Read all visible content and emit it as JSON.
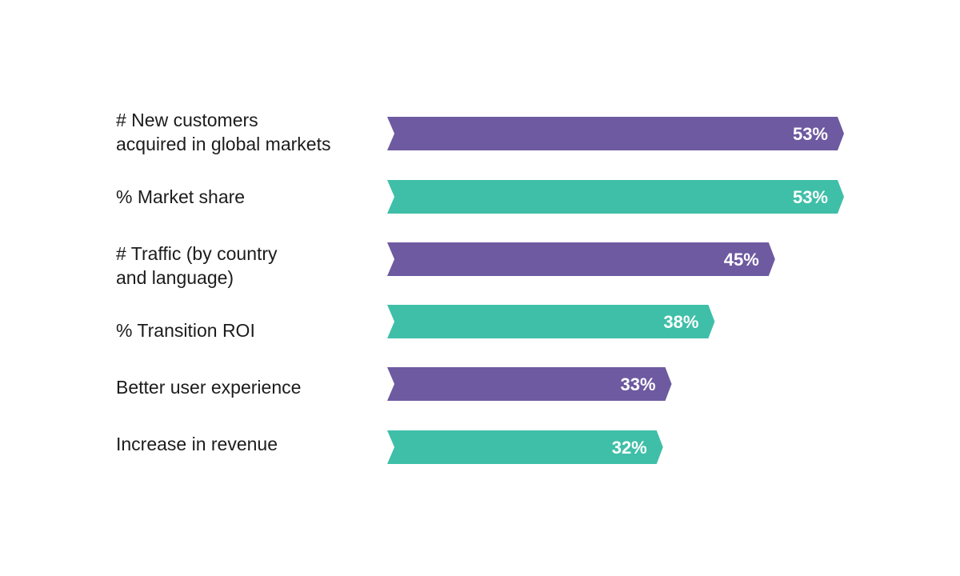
{
  "chart_data": {
    "type": "bar",
    "orientation": "horizontal",
    "categories": [
      "# New customers\nacquired in global markets",
      "% Market share",
      "# Traffic (by country\nand language)",
      "% Transition ROI",
      "Better user experience",
      "Increase in revenue"
    ],
    "values": [
      53,
      53,
      45,
      38,
      33,
      32
    ],
    "value_labels": [
      "53%",
      "53%",
      "45%",
      "38%",
      "33%",
      "32%"
    ],
    "unit": "%",
    "xlim": [
      0,
      53
    ],
    "grid": false,
    "legend": "none",
    "colors": {
      "purple": "#6E5AA0",
      "teal": "#3FBFA8"
    },
    "bar_colors": [
      "#6E5AA0",
      "#3FBFA8",
      "#6E5AA0",
      "#3FBFA8",
      "#6E5AA0",
      "#3FBFA8"
    ]
  }
}
